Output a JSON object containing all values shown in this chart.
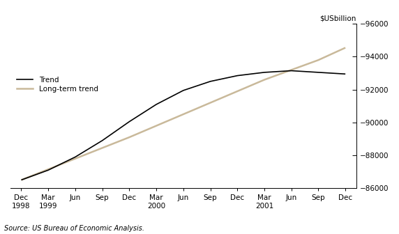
{
  "ylabel": "$USbillion",
  "source": "Source: US Bureau of Economic Analysis.",
  "ylim": [
    86000,
    96000
  ],
  "yticks": [
    86000,
    88000,
    90000,
    92000,
    94000,
    96000
  ],
  "trend_color": "#000000",
  "longterm_color": "#c9b99a",
  "legend_labels": [
    "Trend",
    "Long-term trend"
  ],
  "trend": [
    86500,
    87100,
    87900,
    88900,
    90050,
    91100,
    91950,
    92500,
    92850,
    93050,
    93150,
    93050,
    92950
  ],
  "longterm": [
    86500,
    87150,
    87800,
    88450,
    89100,
    89800,
    90500,
    91200,
    91900,
    92600,
    93200,
    93800,
    94550
  ]
}
